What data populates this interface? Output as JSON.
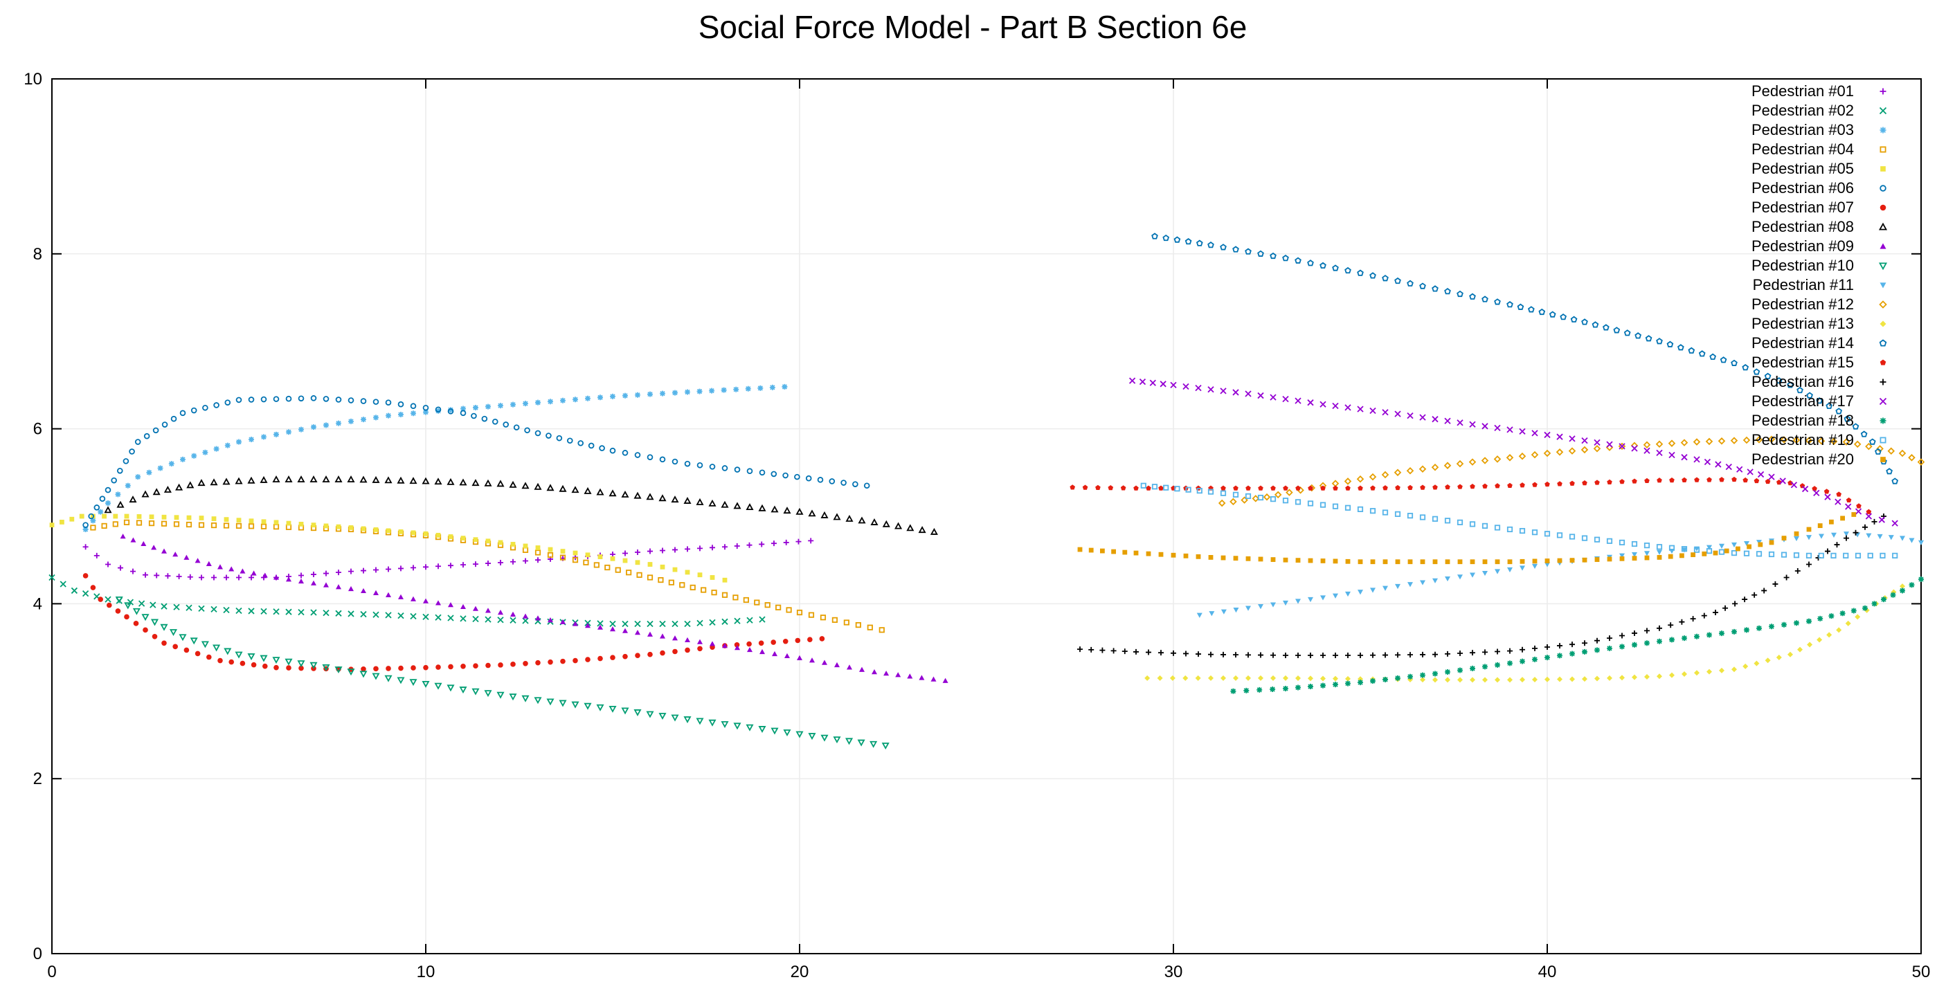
{
  "chart_data": {
    "type": "scatter",
    "title": "Social Force Model - Part B Section 6e",
    "xlabel": "",
    "ylabel": "",
    "xlim": [
      0,
      50
    ],
    "ylim": [
      0,
      10
    ],
    "xticks": [
      "0",
      "10",
      "20",
      "30",
      "40",
      "50"
    ],
    "yticks": [
      "0",
      "2",
      "4",
      "6",
      "8",
      "10"
    ],
    "grid": true,
    "legend_position": "top-right",
    "series": [
      {
        "name": "Pedestrian #01",
        "color": "#9400d3",
        "marker": "plus",
        "points": [
          [
            0.9,
            4.65
          ],
          [
            1.5,
            4.45
          ],
          [
            2.5,
            4.33
          ],
          [
            4,
            4.3
          ],
          [
            6,
            4.3
          ],
          [
            8,
            4.37
          ],
          [
            10,
            4.42
          ],
          [
            12,
            4.47
          ],
          [
            14,
            4.53
          ],
          [
            16,
            4.6
          ],
          [
            18,
            4.65
          ],
          [
            20.3,
            4.72
          ]
        ]
      },
      {
        "name": "Pedestrian #02",
        "color": "#009e73",
        "marker": "cross",
        "points": [
          [
            0,
            4.3
          ],
          [
            0.6,
            4.15
          ],
          [
            1.5,
            4.05
          ],
          [
            3,
            3.97
          ],
          [
            5,
            3.92
          ],
          [
            7,
            3.9
          ],
          [
            9,
            3.87
          ],
          [
            11,
            3.83
          ],
          [
            13,
            3.8
          ],
          [
            15,
            3.77
          ],
          [
            17,
            3.77
          ],
          [
            19,
            3.82
          ]
        ]
      },
      {
        "name": "Pedestrian #03",
        "color": "#56b4e9",
        "marker": "star",
        "points": [
          [
            0.9,
            4.85
          ],
          [
            1.5,
            5.15
          ],
          [
            2.3,
            5.45
          ],
          [
            3.5,
            5.65
          ],
          [
            5,
            5.85
          ],
          [
            7,
            6.02
          ],
          [
            9,
            6.15
          ],
          [
            11,
            6.23
          ],
          [
            13,
            6.3
          ],
          [
            15,
            6.37
          ],
          [
            17,
            6.42
          ],
          [
            19.6,
            6.48
          ]
        ]
      },
      {
        "name": "Pedestrian #04",
        "color": "#e69f00",
        "marker": "square-open",
        "points": [
          [
            1.1,
            4.87
          ],
          [
            2,
            4.93
          ],
          [
            4,
            4.9
          ],
          [
            6,
            4.88
          ],
          [
            8,
            4.85
          ],
          [
            10,
            4.78
          ],
          [
            12,
            4.67
          ],
          [
            14,
            4.5
          ],
          [
            16,
            4.3
          ],
          [
            18,
            4.1
          ],
          [
            20,
            3.9
          ],
          [
            22.2,
            3.7
          ]
        ]
      },
      {
        "name": "Pedestrian #05",
        "color": "#f0e442",
        "marker": "square",
        "points": [
          [
            0,
            4.9
          ],
          [
            0.8,
            5
          ],
          [
            2,
            5
          ],
          [
            4,
            4.98
          ],
          [
            6,
            4.93
          ],
          [
            8,
            4.87
          ],
          [
            10,
            4.8
          ],
          [
            12,
            4.7
          ],
          [
            14,
            4.58
          ],
          [
            16,
            4.45
          ],
          [
            18,
            4.27
          ]
        ]
      },
      {
        "name": "Pedestrian #06",
        "color": "#0072b2",
        "marker": "circle-open",
        "points": [
          [
            0.9,
            4.9
          ],
          [
            1.5,
            5.3
          ],
          [
            2.3,
            5.85
          ],
          [
            3.5,
            6.18
          ],
          [
            5,
            6.33
          ],
          [
            7,
            6.35
          ],
          [
            9,
            6.3
          ],
          [
            11,
            6.18
          ],
          [
            13,
            5.95
          ],
          [
            15,
            5.75
          ],
          [
            17,
            5.6
          ],
          [
            19,
            5.5
          ],
          [
            21.8,
            5.35
          ]
        ]
      },
      {
        "name": "Pedestrian #07",
        "color": "#e51e10",
        "marker": "circle",
        "points": [
          [
            0.9,
            4.32
          ],
          [
            1.3,
            4.05
          ],
          [
            2,
            3.85
          ],
          [
            3,
            3.55
          ],
          [
            4.5,
            3.35
          ],
          [
            6,
            3.27
          ],
          [
            8,
            3.25
          ],
          [
            10,
            3.27
          ],
          [
            12,
            3.3
          ],
          [
            14,
            3.35
          ],
          [
            16,
            3.42
          ],
          [
            18,
            3.52
          ],
          [
            20.6,
            3.6
          ]
        ]
      },
      {
        "name": "Pedestrian #08",
        "color": "#000000",
        "marker": "triangle-open",
        "points": [
          [
            1.5,
            5.07
          ],
          [
            2.5,
            5.25
          ],
          [
            4,
            5.38
          ],
          [
            6,
            5.42
          ],
          [
            8,
            5.42
          ],
          [
            10,
            5.4
          ],
          [
            12,
            5.37
          ],
          [
            14,
            5.3
          ],
          [
            16,
            5.22
          ],
          [
            18,
            5.13
          ],
          [
            20,
            5.05
          ],
          [
            22,
            4.93
          ],
          [
            23.6,
            4.82
          ]
        ]
      },
      {
        "name": "Pedestrian #09",
        "color": "#9400d3",
        "marker": "triangle",
        "points": [
          [
            1.9,
            4.77
          ],
          [
            3,
            4.6
          ],
          [
            4.5,
            4.42
          ],
          [
            6,
            4.3
          ],
          [
            8,
            4.17
          ],
          [
            10,
            4.03
          ],
          [
            12,
            3.9
          ],
          [
            14,
            3.77
          ],
          [
            16,
            3.65
          ],
          [
            18,
            3.52
          ],
          [
            20,
            3.38
          ],
          [
            22,
            3.22
          ],
          [
            23.9,
            3.12
          ]
        ]
      },
      {
        "name": "Pedestrian #10",
        "color": "#009e73",
        "marker": "triangle-down-open",
        "points": [
          [
            1.8,
            4.05
          ],
          [
            2.5,
            3.85
          ],
          [
            3.5,
            3.62
          ],
          [
            5,
            3.42
          ],
          [
            7,
            3.3
          ],
          [
            9,
            3.15
          ],
          [
            11,
            3.02
          ],
          [
            13,
            2.9
          ],
          [
            15,
            2.8
          ],
          [
            17,
            2.68
          ],
          [
            19,
            2.57
          ],
          [
            21,
            2.45
          ],
          [
            22.3,
            2.38
          ]
        ]
      },
      {
        "name": "Pedestrian #11",
        "color": "#56b4e9",
        "marker": "triangle-down",
        "points": [
          [
            30.7,
            3.87
          ],
          [
            32,
            3.95
          ],
          [
            34,
            4.07
          ],
          [
            36,
            4.2
          ],
          [
            38,
            4.33
          ],
          [
            40,
            4.45
          ],
          [
            42,
            4.55
          ],
          [
            44,
            4.63
          ],
          [
            46,
            4.72
          ],
          [
            48,
            4.8
          ],
          [
            49.5,
            4.75
          ],
          [
            50,
            4.7
          ]
        ]
      },
      {
        "name": "Pedestrian #12",
        "color": "#e69f00",
        "marker": "diamond-open",
        "points": [
          [
            31.3,
            5.15
          ],
          [
            32.5,
            5.22
          ],
          [
            34,
            5.35
          ],
          [
            36,
            5.5
          ],
          [
            38,
            5.62
          ],
          [
            40,
            5.72
          ],
          [
            42,
            5.8
          ],
          [
            44,
            5.85
          ],
          [
            46,
            5.88
          ],
          [
            48,
            5.85
          ],
          [
            49.5,
            5.72
          ],
          [
            50,
            5.62
          ]
        ]
      },
      {
        "name": "Pedestrian #13",
        "color": "#f0e442",
        "marker": "diamond",
        "points": [
          [
            29.3,
            3.15
          ],
          [
            31,
            3.15
          ],
          [
            33,
            3.15
          ],
          [
            35,
            3.14
          ],
          [
            37,
            3.13
          ],
          [
            39,
            3.13
          ],
          [
            41,
            3.14
          ],
          [
            43,
            3.17
          ],
          [
            45,
            3.25
          ],
          [
            46.5,
            3.42
          ],
          [
            47.8,
            3.7
          ],
          [
            48.8,
            4.0
          ],
          [
            49.5,
            4.2
          ]
        ]
      },
      {
        "name": "Pedestrian #14",
        "color": "#0072b2",
        "marker": "pentagon-open",
        "points": [
          [
            29.5,
            8.2
          ],
          [
            31,
            8.1
          ],
          [
            33,
            7.95
          ],
          [
            35,
            7.78
          ],
          [
            37,
            7.6
          ],
          [
            39,
            7.42
          ],
          [
            41,
            7.22
          ],
          [
            43,
            7.0
          ],
          [
            45,
            6.75
          ],
          [
            46.5,
            6.5
          ],
          [
            47.8,
            6.2
          ],
          [
            48.7,
            5.85
          ],
          [
            49.3,
            5.4
          ]
        ]
      },
      {
        "name": "Pedestrian #15",
        "color": "#e51e10",
        "marker": "pentagon",
        "points": [
          [
            27.3,
            5.33
          ],
          [
            29,
            5.32
          ],
          [
            31,
            5.32
          ],
          [
            33,
            5.32
          ],
          [
            35,
            5.32
          ],
          [
            37,
            5.33
          ],
          [
            39,
            5.35
          ],
          [
            41,
            5.38
          ],
          [
            43,
            5.41
          ],
          [
            45,
            5.42
          ],
          [
            46.5,
            5.38
          ],
          [
            47.8,
            5.25
          ],
          [
            48.6,
            5.05
          ]
        ]
      },
      {
        "name": "Pedestrian #16",
        "color": "#000000",
        "marker": "plus",
        "points": [
          [
            27.5,
            3.48
          ],
          [
            29,
            3.45
          ],
          [
            31,
            3.42
          ],
          [
            33,
            3.41
          ],
          [
            35,
            3.41
          ],
          [
            37,
            3.42
          ],
          [
            39,
            3.46
          ],
          [
            41,
            3.55
          ],
          [
            43,
            3.72
          ],
          [
            44.5,
            3.9
          ],
          [
            45.8,
            4.15
          ],
          [
            47,
            4.45
          ],
          [
            48,
            4.75
          ],
          [
            49,
            5.0
          ]
        ]
      },
      {
        "name": "Pedestrian #17",
        "color": "#9400d3",
        "marker": "cross",
        "points": [
          [
            28.9,
            6.55
          ],
          [
            30,
            6.5
          ],
          [
            32,
            6.4
          ],
          [
            34,
            6.28
          ],
          [
            36,
            6.17
          ],
          [
            38,
            6.05
          ],
          [
            40,
            5.93
          ],
          [
            42,
            5.8
          ],
          [
            44,
            5.65
          ],
          [
            46,
            5.45
          ],
          [
            47.5,
            5.22
          ],
          [
            48.6,
            5.0
          ],
          [
            49.3,
            4.92
          ]
        ]
      },
      {
        "name": "Pedestrian #18",
        "color": "#009e73",
        "marker": "star",
        "points": [
          [
            31.6,
            3.0
          ],
          [
            33,
            3.03
          ],
          [
            35,
            3.1
          ],
          [
            37,
            3.2
          ],
          [
            39,
            3.32
          ],
          [
            41,
            3.45
          ],
          [
            43,
            3.57
          ],
          [
            45,
            3.68
          ],
          [
            47,
            3.8
          ],
          [
            48.5,
            3.95
          ],
          [
            49.5,
            4.15
          ],
          [
            50,
            4.28
          ]
        ]
      },
      {
        "name": "Pedestrian #19",
        "color": "#56b4e9",
        "marker": "square-open",
        "points": [
          [
            29.2,
            5.35
          ],
          [
            31,
            5.28
          ],
          [
            33,
            5.18
          ],
          [
            35,
            5.08
          ],
          [
            37,
            4.97
          ],
          [
            39,
            4.85
          ],
          [
            41,
            4.75
          ],
          [
            43,
            4.65
          ],
          [
            45,
            4.58
          ],
          [
            47,
            4.55
          ],
          [
            49.3,
            4.55
          ]
        ]
      },
      {
        "name": "Pedestrian #20",
        "color": "#e69f00",
        "marker": "square",
        "points": [
          [
            27.5,
            4.62
          ],
          [
            29,
            4.58
          ],
          [
            31,
            4.53
          ],
          [
            33,
            4.5
          ],
          [
            35,
            4.48
          ],
          [
            37,
            4.48
          ],
          [
            39,
            4.48
          ],
          [
            41,
            4.5
          ],
          [
            43,
            4.53
          ],
          [
            44.5,
            4.58
          ],
          [
            46,
            4.7
          ],
          [
            47,
            4.85
          ],
          [
            48.2,
            5.02
          ]
        ]
      }
    ]
  }
}
